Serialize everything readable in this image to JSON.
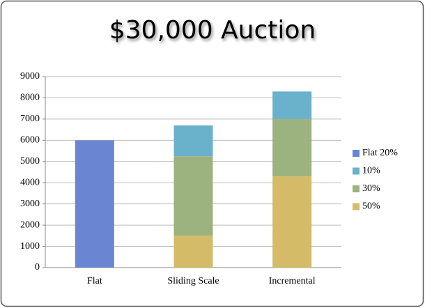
{
  "chart_data": {
    "type": "stacked_bar",
    "title": "$30,000 Auction",
    "categories": [
      "Flat",
      "Sliding Scale",
      "Incremental"
    ],
    "series": [
      {
        "name": "Flat 20%",
        "color": "#6a86d3",
        "values": [
          6000,
          null,
          null
        ]
      },
      {
        "name": "10%",
        "color": "#6ab1cc",
        "values": [
          null,
          1450,
          1300
        ]
      },
      {
        "name": "30%",
        "color": "#9cb37f",
        "values": [
          null,
          3750,
          2700
        ]
      },
      {
        "name": "50%",
        "color": "#d4bb68",
        "values": [
          null,
          1500,
          4300
        ]
      }
    ],
    "ylim": [
      0,
      9000
    ],
    "yticks": [
      0,
      1000,
      2000,
      3000,
      4000,
      5000,
      6000,
      7000,
      8000,
      9000
    ],
    "grid": true,
    "legend": "right"
  }
}
